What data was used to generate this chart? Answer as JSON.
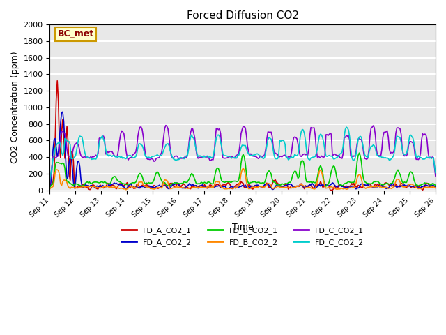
{
  "title": "Forced Diffusion CO2",
  "xlabel": "Time",
  "ylabel": "CO2 Concentration (ppm)",
  "ylim": [
    0,
    2000
  ],
  "plot_bg_color": "#e8e8e8",
  "grid_color": "white",
  "annotation_text": "BC_met",
  "annotation_box_color": "#ffffcc",
  "annotation_box_edge": "#cc9900",
  "annotation_text_color": "#8B0000",
  "series": {
    "FD_A_CO2_1": {
      "color": "#cc0000",
      "lw": 1.2
    },
    "FD_A_CO2_2": {
      "color": "#0000cc",
      "lw": 1.2
    },
    "FD_B_CO2_1": {
      "color": "#00cc00",
      "lw": 1.2
    },
    "FD_B_CO2_2": {
      "color": "#ff8800",
      "lw": 1.2
    },
    "FD_C_CO2_1": {
      "color": "#8800cc",
      "lw": 1.2
    },
    "FD_C_CO2_2": {
      "color": "#00cccc",
      "lw": 1.2
    }
  },
  "xtick_labels": [
    "Sep 11",
    "Sep 12",
    "Sep 13",
    "Sep 14",
    "Sep 15",
    "Sep 16",
    "Sep 17",
    "Sep 18",
    "Sep 19",
    "Sep 20",
    "Sep 21",
    "Sep 22",
    "Sep 23",
    "Sep 24",
    "Sep 25",
    "Sep 26"
  ],
  "ytick_values": [
    0,
    200,
    400,
    600,
    800,
    1000,
    1200,
    1400,
    1600,
    1800,
    2000
  ]
}
